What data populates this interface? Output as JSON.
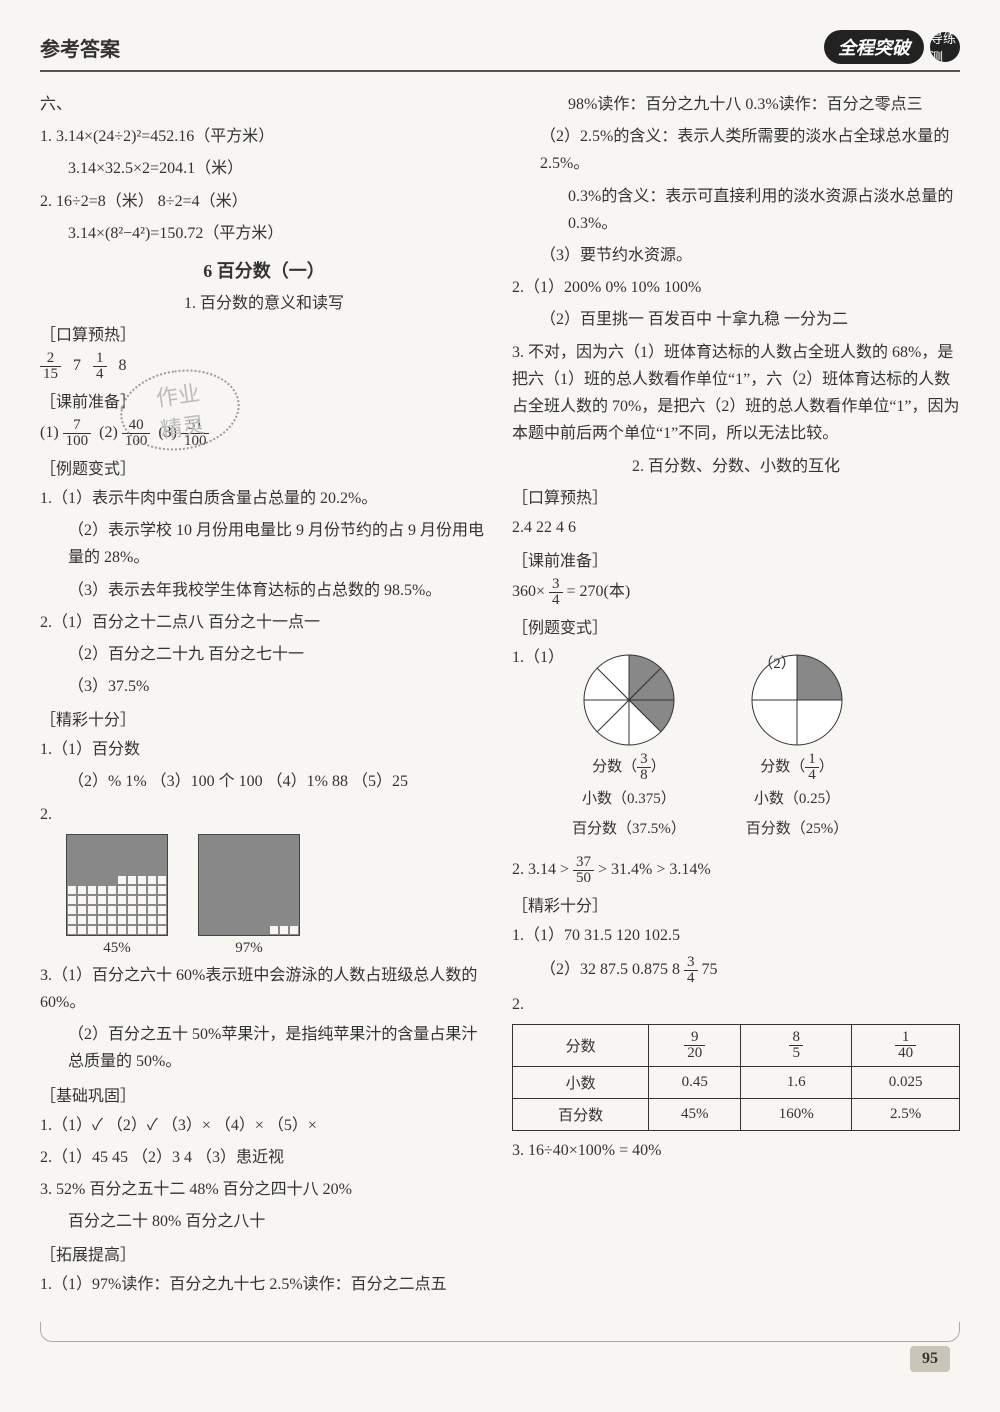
{
  "header": {
    "title": "参考答案",
    "brand_main": "全程突破",
    "brand_sub": "导练测"
  },
  "left": {
    "six": "六、",
    "l1a": "1. 3.14×(24÷2)²=452.16（平方米）",
    "l1b": "3.14×32.5×2=204.1（米）",
    "l2a": "2. 16÷2=8（米）  8÷2=4（米）",
    "l2b": "3.14×(8²−4²)=150.72（平方米）",
    "chapter": "6  百分数（一）",
    "sub1": "1. 百分数的意义和读写",
    "kousuan": "［口算预热］",
    "ks_vals": [
      "2",
      "15",
      "7",
      "1",
      "4",
      "8"
    ],
    "keqian": "［课前准备］",
    "kq_line": [
      "(1)",
      "7",
      "100",
      "(2)",
      "40",
      "100",
      "(3)",
      "51",
      "100"
    ],
    "liti": "［例题变式］",
    "e1_1": "1.（1）表示牛肉中蛋白质含量占总量的 20.2%。",
    "e1_2": "（2）表示学校 10 月份用电量比 9 月份节约的占 9 月份用电量的 28%。",
    "e1_3": "（3）表示去年我校学生体育达标的占总数的 98.5%。",
    "e2_1": "2.（1）百分之十二点八  百分之十一点一",
    "e2_2": "（2）百分之二十九  百分之七十一",
    "e2_3": "（3）37.5%",
    "jingcai": "［精彩十分］",
    "j1_1": "1.（1）百分数",
    "j1_2": "（2）%  1%  （3）100 个  100  （4）1%  88  （5）25",
    "j2": "2.",
    "grid_labels": [
      "45%",
      "97%"
    ],
    "grid_fills": [
      45,
      97
    ],
    "j3_1": "3.（1）百分之六十  60%表示班中会游泳的人数占班级总人数的 60%。",
    "j3_2": "（2）百分之五十  50%苹果汁，是指纯苹果汁的含量占果汁总质量的 50%。",
    "jichu": "［基础巩固］",
    "b1": "1.（1）✓ （2）✓ （3）× （4）× （5）×",
    "b2": "2.（1）45  45 （2）3  4 （3）患近视",
    "b3a": "3. 52%  百分之五十二  48%  百分之四十八  20%",
    "b3b": "百分之二十  80%  百分之八十",
    "tuozhan": "［拓展提高］",
    "t1": "1.（1）97%读作：百分之九十七  2.5%读作：百分之二点五"
  },
  "right": {
    "r_t1b": "98%读作：百分之九十八  0.3%读作：百分之零点三",
    "r_t2a": "（2）2.5%的含义：表示人类所需要的淡水占全球总水量的 2.5%。",
    "r_t2b": "0.3%的含义：表示可直接利用的淡水资源占淡水总量的 0.3%。",
    "r_t3": "（3）要节约水资源。",
    "r2_1": "2.（1）200%  0%  10%  100%",
    "r2_2": "（2）百里挑一  百发百中  十拿九稳  一分为二",
    "r3": "3. 不对，因为六（1）班体育达标的人数占全班人数的 68%，是把六（1）班的总人数看作单位“1”，六（2）班体育达标的人数占全班人数的 70%，是把六（2）班的总人数看作单位“1”，因为本题中前后两个单位“1”不同，所以无法比较。",
    "sub2": "2. 百分数、分数、小数的互化",
    "kousuan2": "［口算预热］",
    "ks2": "2.4  22  4  6",
    "keqian2": "［课前准备］",
    "kq2_pre": "360×",
    "kq2_n": "3",
    "kq2_d": "4",
    "kq2_post": " = 270(本)",
    "liti2": "［例题变式］",
    "pie_head": "1.（1）",
    "pie_head2": "（2）",
    "pie1": {
      "frac_label": "分数",
      "frac_n": "3",
      "frac_d": "8",
      "dec": "小数（0.375）",
      "pct": "百分数（37.5%）",
      "fill_slices": 3,
      "total_slices": 8
    },
    "pie2": {
      "frac_label": "分数",
      "frac_n": "1",
      "frac_d": "4",
      "dec": "小数（0.25）",
      "pct": "百分数（25%）",
      "fill_slices": 1,
      "total_slices": 4
    },
    "r_l2": "2. 3.14 >",
    "r_l2_n": "37",
    "r_l2_d": "50",
    "r_l2b": "> 31.4% > 3.14%",
    "jingcai2": "［精彩十分］",
    "jc1_1": "1.（1）70  31.5  120  102.5",
    "jc1_2pre": "（2）32  87.5  0.875  8  ",
    "jc1_2n": "3",
    "jc1_2d": "4",
    "jc1_2post": "  75",
    "tbl_head": "2.",
    "table": {
      "rows": [
        [
          "分数",
          {
            "n": "9",
            "d": "20"
          },
          {
            "n": "8",
            "d": "5"
          },
          {
            "n": "1",
            "d": "40"
          }
        ],
        [
          "小数",
          "0.45",
          "1.6",
          "0.025"
        ],
        [
          "百分数",
          "45%",
          "160%",
          "2.5%"
        ]
      ]
    },
    "r_last": "3. 16÷40×100% = 40%"
  },
  "page_num": "95",
  "watermark": "作业\n精灵"
}
